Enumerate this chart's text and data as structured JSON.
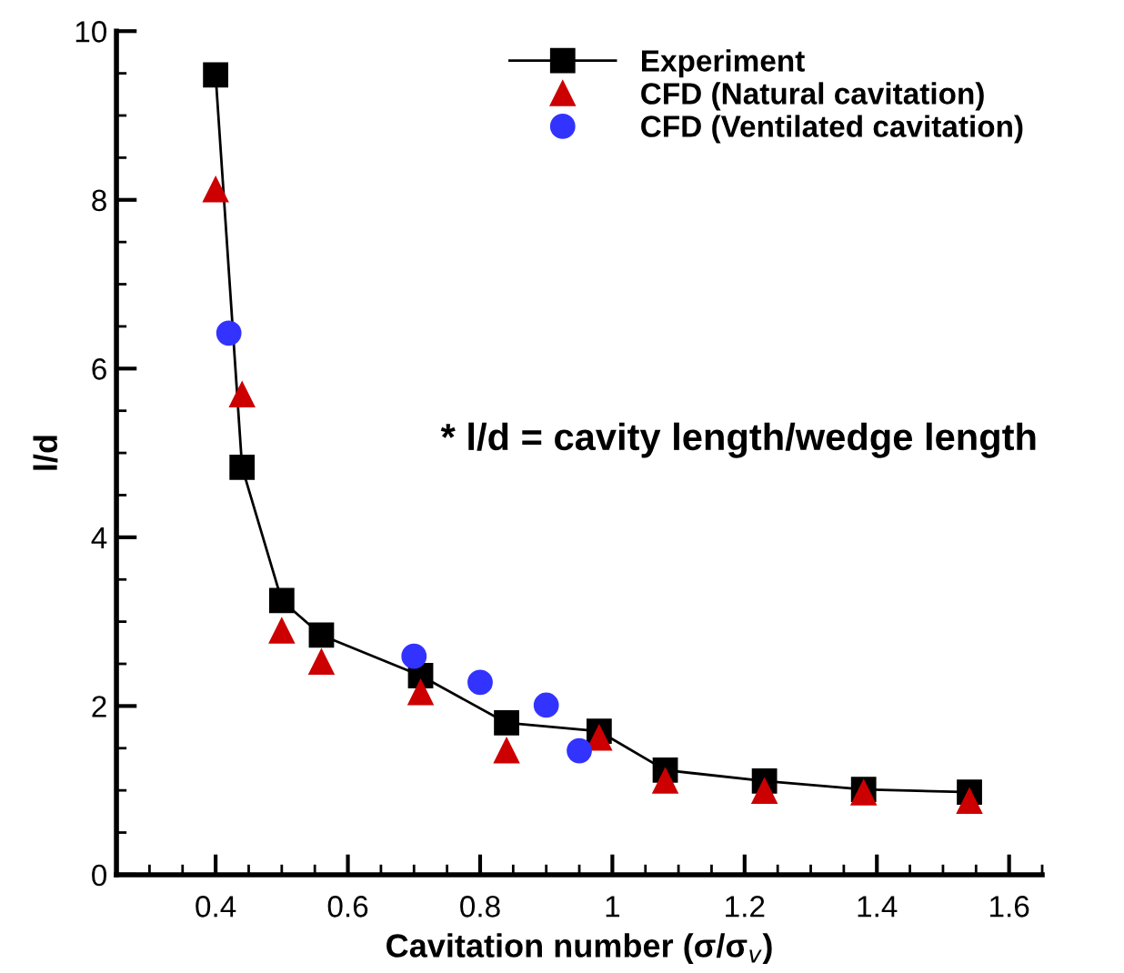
{
  "chart_data": {
    "type": "scatter",
    "xlabel": "Cavitation number (σ/σ$_{v}$)",
    "ylabel": "l/d",
    "xlim": [
      0.25,
      1.65
    ],
    "ylim": [
      0,
      10
    ],
    "xticks": [
      0.4,
      0.6,
      0.8,
      {
        "value": 1.0,
        "label": "1"
      },
      1.2,
      1.4,
      1.6
    ],
    "yticks": [
      0,
      2,
      4,
      6,
      8,
      10
    ],
    "legend": "top right",
    "grid": false,
    "annotations": [
      "* l/d = cavity length/wedge length"
    ],
    "series": [
      {
        "name": "Experiment",
        "type": "line",
        "marker": "square",
        "color": "#000000",
        "x": [
          0.4,
          0.44,
          0.5,
          0.56,
          0.71,
          0.84,
          0.98,
          1.08,
          1.23,
          1.38,
          1.54
        ],
        "values": [
          9.48,
          4.83,
          3.25,
          2.84,
          2.36,
          1.8,
          1.7,
          1.24,
          1.11,
          1.01,
          0.98
        ]
      },
      {
        "name": "CFD (Natural cavitation)",
        "marker": "triangle",
        "color": "#cc0000",
        "x": [
          0.4,
          0.44,
          0.5,
          0.56,
          0.71,
          0.84,
          0.98,
          1.08,
          1.23,
          1.38,
          1.54
        ],
        "values": [
          8.12,
          5.69,
          2.89,
          2.52,
          2.16,
          1.47,
          1.62,
          1.11,
          0.99,
          0.97,
          0.87
        ]
      },
      {
        "name": "CFD (Ventilated cavitation)",
        "marker": "circle",
        "color": "#3333ff",
        "x": [
          0.42,
          0.7,
          0.8,
          0.9,
          0.95
        ],
        "values": [
          6.42,
          2.59,
          2.28,
          2.01,
          1.47
        ]
      }
    ]
  }
}
